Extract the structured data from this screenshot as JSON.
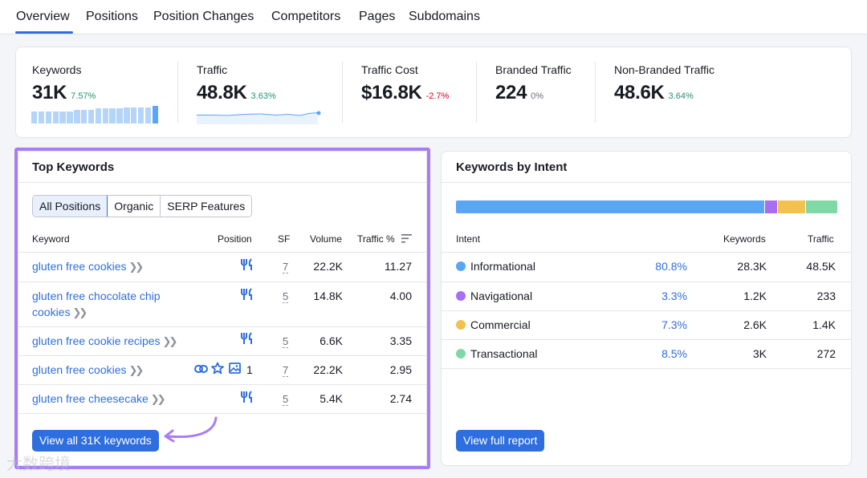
{
  "tabs": [
    "Overview",
    "Positions",
    "Position Changes",
    "Competitors",
    "Pages",
    "Subdomains"
  ],
  "metrics": [
    {
      "label": "Keywords",
      "value": "31K",
      "delta": "7.57%",
      "trend": "up"
    },
    {
      "label": "Traffic",
      "value": "48.8K",
      "delta": "3.63%",
      "trend": "up"
    },
    {
      "label": "Traffic Cost",
      "value": "$16.8K",
      "delta": "-2.7%",
      "trend": "down"
    },
    {
      "label": "Branded Traffic",
      "value": "224",
      "delta": "0%",
      "trend": "flat"
    },
    {
      "label": "Non-Branded Traffic",
      "value": "48.6K",
      "delta": "3.64%",
      "trend": "up"
    }
  ],
  "colors": {
    "accent": "#2f6ede",
    "highlight": "#a87df3",
    "up": "#259469",
    "down": "#d1002f",
    "informational": "#5aa5f4",
    "navigational": "#a86df0",
    "commercial": "#f3c14e",
    "transactional": "#7fd8a6"
  },
  "top_keywords": {
    "title": "Top Keywords",
    "filters": [
      "All Positions",
      "Organic",
      "SERP Features"
    ],
    "active_filter": "All Positions",
    "columns": {
      "keyword": "Keyword",
      "position": "Position",
      "sf": "SF",
      "volume": "Volume",
      "traffic": "Traffic %"
    },
    "rows": [
      {
        "keyword": "gluten free cookies",
        "position_icon": "restaurant-icon",
        "sf": "7",
        "volume": "22.2K",
        "traffic": "11.27"
      },
      {
        "keyword": "gluten free chocolate chip cookies",
        "position_icon": "restaurant-icon",
        "sf": "5",
        "volume": "14.8K",
        "traffic": "4.00"
      },
      {
        "keyword": "gluten free cookie recipes",
        "position_icon": "restaurant-icon",
        "sf": "5",
        "volume": "6.6K",
        "traffic": "3.35"
      },
      {
        "keyword": "gluten free cookies",
        "position_icon": "link-star-image-icons",
        "position": "1",
        "sf": "7",
        "volume": "22.2K",
        "traffic": "2.95"
      },
      {
        "keyword": "gluten free cheesecake",
        "position_icon": "restaurant-icon",
        "sf": "5",
        "volume": "5.4K",
        "traffic": "2.74"
      }
    ],
    "view_all_label": "View all 31K keywords"
  },
  "intent": {
    "title": "Keywords by Intent",
    "columns": {
      "intent": "Intent",
      "keywords": "Keywords",
      "traffic": "Traffic"
    },
    "bar_shares": [
      80.8,
      3.3,
      7.3,
      8.5
    ],
    "rows": [
      {
        "name": "Informational",
        "pct": "80.8%",
        "keywords": "28.3K",
        "traffic": "48.5K",
        "color": "#5aa5f4"
      },
      {
        "name": "Navigational",
        "pct": "3.3%",
        "keywords": "1.2K",
        "traffic": "233",
        "color": "#a86df0"
      },
      {
        "name": "Commercial",
        "pct": "7.3%",
        "keywords": "2.6K",
        "traffic": "1.4K",
        "color": "#f3c14e"
      },
      {
        "name": "Transactional",
        "pct": "8.5%",
        "keywords": "3K",
        "traffic": "272",
        "color": "#7fd8a6"
      }
    ],
    "view_report_label": "View full report"
  },
  "keywords_trend": [
    4,
    4,
    4,
    4,
    4,
    4,
    5,
    5,
    5,
    6,
    6,
    6,
    6,
    7,
    7,
    7,
    7,
    8
  ],
  "watermark": "大数跨境"
}
